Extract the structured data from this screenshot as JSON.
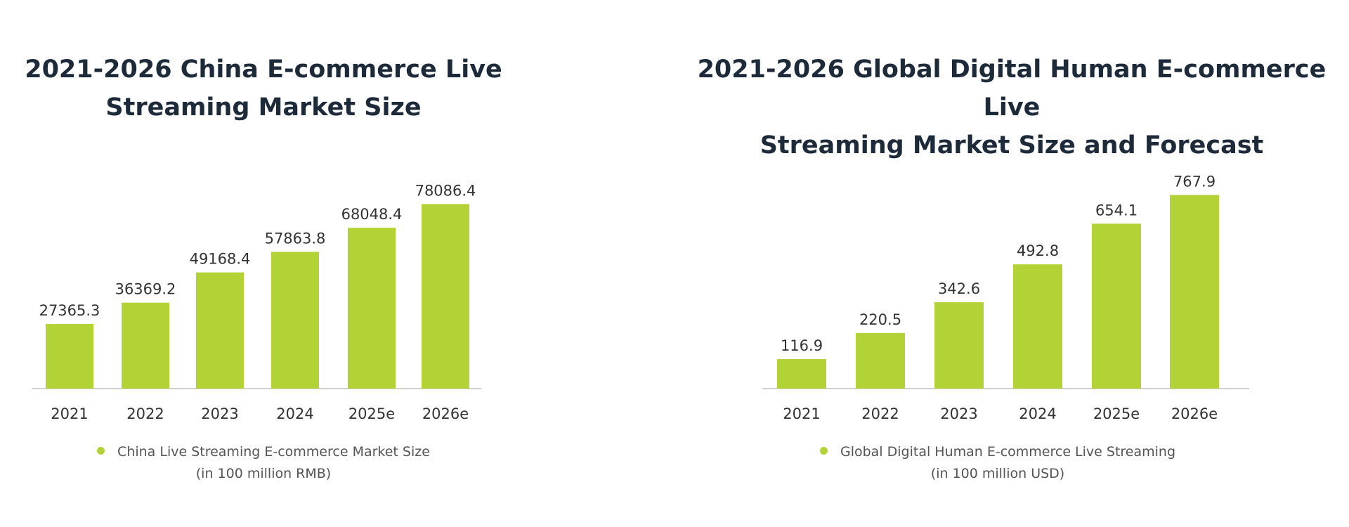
{
  "colors": {
    "bar": "#b2d235",
    "axis": "#d0d0d0",
    "title": "#1d2a3a",
    "label": "#333333",
    "legend_text": "#555555"
  },
  "chart_data": [
    {
      "type": "bar",
      "title": "2021-2026 China E-commerce Live Streaming Market Size",
      "title_lines": [
        "2021-2026 China E-commerce Live",
        "Streaming Market Size"
      ],
      "categories": [
        "2021",
        "2022",
        "2023",
        "2024",
        "2025e",
        "2026e"
      ],
      "series": [
        {
          "name": "China Live Streaming E-commerce Market Size (in 100 million RMB)",
          "values": [
            27365.3,
            36369.2,
            49168.4,
            57863.8,
            68048.4,
            78086.4
          ]
        }
      ],
      "value_labels": [
        "27365.3",
        "36369.2",
        "49168.4",
        "57863.8",
        "68048.4",
        "78086.4"
      ],
      "legend_lines": [
        "China Live Streaming E-commerce Market Size",
        "(in 100 million RMB)"
      ],
      "ylim": [
        0,
        80000
      ],
      "grid": false,
      "legend_position": "bottom"
    },
    {
      "type": "bar",
      "title": "2021-2026 Global Digital Human E-commerce Live Streaming Market Size and Forecast",
      "title_lines": [
        "2021-2026 Global Digital Human E-commerce Live",
        "Streaming Market Size and Forecast"
      ],
      "categories": [
        "2021",
        "2022",
        "2023",
        "2024",
        "2025e",
        "2026e"
      ],
      "series": [
        {
          "name": "Global Digital Human E-commerce Live Streaming (in 100 million USD)",
          "values": [
            116.9,
            220.5,
            342.6,
            492.8,
            654.1,
            767.9
          ]
        }
      ],
      "value_labels": [
        "116.9",
        "220.5",
        "342.6",
        "492.8",
        "654.1",
        "767.9"
      ],
      "legend_lines": [
        "Global Digital Human E-commerce Live Streaming",
        "(in 100 million USD)"
      ],
      "ylim": [
        0,
        800
      ],
      "grid": false,
      "legend_position": "bottom"
    }
  ]
}
